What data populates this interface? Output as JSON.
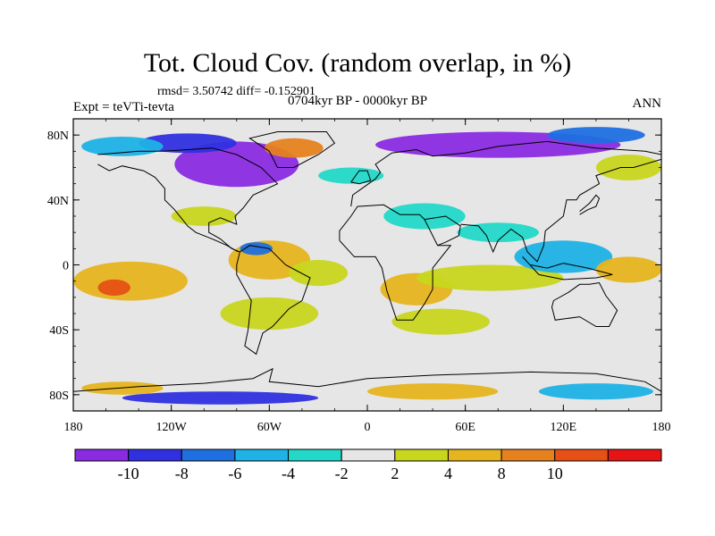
{
  "title": "Tot. Cloud Cov. (random overlap, in %)",
  "stats": "rmsd= 3.50742 diff= -0.152901",
  "experiment": "Expt = teVTi-tevta",
  "period": "0704kyr BP - 0000kyr BP",
  "season": "ANN",
  "lat_ticks": [
    {
      "lat": 80,
      "label": "80N"
    },
    {
      "lat": 40,
      "label": "40N"
    },
    {
      "lat": 0,
      "label": "0"
    },
    {
      "lat": -40,
      "label": "40S"
    },
    {
      "lat": -80,
      "label": "80S"
    }
  ],
  "lon_ticks": [
    {
      "lon": -180,
      "label": "180"
    },
    {
      "lon": -120,
      "label": "120W"
    },
    {
      "lon": -60,
      "label": "60W"
    },
    {
      "lon": 0,
      "label": "0"
    },
    {
      "lon": 60,
      "label": "60E"
    },
    {
      "lon": 120,
      "label": "120E"
    },
    {
      "lon": 180,
      "label": "180"
    }
  ],
  "colorbar": {
    "colors": [
      "#8a2be2",
      "#3030e0",
      "#1f6fe0",
      "#1eb2e6",
      "#22d8c8",
      "#e6e6e6",
      "#c8d61e",
      "#e6b41e",
      "#e6821e",
      "#e65014",
      "#e61414"
    ],
    "labels": [
      "-10",
      "-8",
      "-6",
      "-4",
      "-2",
      "2",
      "4",
      "8",
      "10"
    ]
  },
  "chart_data": {
    "type": "heatmap",
    "variable": "Tot. Cloud Cov. (random overlap, in %)",
    "levels": [
      -10,
      -8,
      -6,
      -4,
      -2,
      2,
      4,
      8,
      10
    ],
    "lon_range": [
      -180,
      180
    ],
    "lat_range": [
      -90,
      90
    ],
    "anomaly_regions": [
      {
        "lon": -80,
        "lat": 62,
        "rx": 38,
        "ry": 14,
        "value": -11
      },
      {
        "lon": -110,
        "lat": 75,
        "rx": 30,
        "ry": 6,
        "value": -9
      },
      {
        "lon": -45,
        "lat": 72,
        "rx": 18,
        "ry": 6,
        "value": 9
      },
      {
        "lon": 80,
        "lat": 74,
        "rx": 75,
        "ry": 8,
        "value": -11
      },
      {
        "lon": 140,
        "lat": 80,
        "rx": 30,
        "ry": 5,
        "value": -6
      },
      {
        "lon": -150,
        "lat": 73,
        "rx": 25,
        "ry": 6,
        "value": -4
      },
      {
        "lon": -145,
        "lat": -10,
        "rx": 35,
        "ry": 12,
        "value": 6
      },
      {
        "lon": -155,
        "lat": -14,
        "rx": 10,
        "ry": 5,
        "value": 11
      },
      {
        "lon": -60,
        "lat": 3,
        "rx": 25,
        "ry": 12,
        "value": 5
      },
      {
        "lon": -68,
        "lat": 10,
        "rx": 10,
        "ry": 4,
        "value": -6
      },
      {
        "lon": -30,
        "lat": -5,
        "rx": 18,
        "ry": 8,
        "value": 3
      },
      {
        "lon": 30,
        "lat": -15,
        "rx": 22,
        "ry": 10,
        "value": 6
      },
      {
        "lon": 75,
        "lat": -8,
        "rx": 45,
        "ry": 8,
        "value": 4
      },
      {
        "lon": 35,
        "lat": 30,
        "rx": 25,
        "ry": 8,
        "value": -3
      },
      {
        "lon": 120,
        "lat": 5,
        "rx": 30,
        "ry": 10,
        "value": -5
      },
      {
        "lon": 160,
        "lat": -3,
        "rx": 20,
        "ry": 8,
        "value": 5
      },
      {
        "lon": 80,
        "lat": 20,
        "rx": 25,
        "ry": 6,
        "value": -3
      },
      {
        "lon": -60,
        "lat": -30,
        "rx": 30,
        "ry": 10,
        "value": 4
      },
      {
        "lon": 45,
        "lat": -35,
        "rx": 30,
        "ry": 8,
        "value": 3
      },
      {
        "lon": -90,
        "lat": -82,
        "rx": 60,
        "ry": 4,
        "value": -8
      },
      {
        "lon": 40,
        "lat": -78,
        "rx": 40,
        "ry": 5,
        "value": 8
      },
      {
        "lon": 140,
        "lat": -78,
        "rx": 35,
        "ry": 5,
        "value": -5
      },
      {
        "lon": -150,
        "lat": -76,
        "rx": 25,
        "ry": 4,
        "value": 5
      },
      {
        "lon": 160,
        "lat": 60,
        "rx": 20,
        "ry": 8,
        "value": 3
      },
      {
        "lon": -10,
        "lat": 55,
        "rx": 20,
        "ry": 5,
        "value": -3
      },
      {
        "lon": -100,
        "lat": 30,
        "rx": 20,
        "ry": 6,
        "value": 3
      }
    ]
  }
}
